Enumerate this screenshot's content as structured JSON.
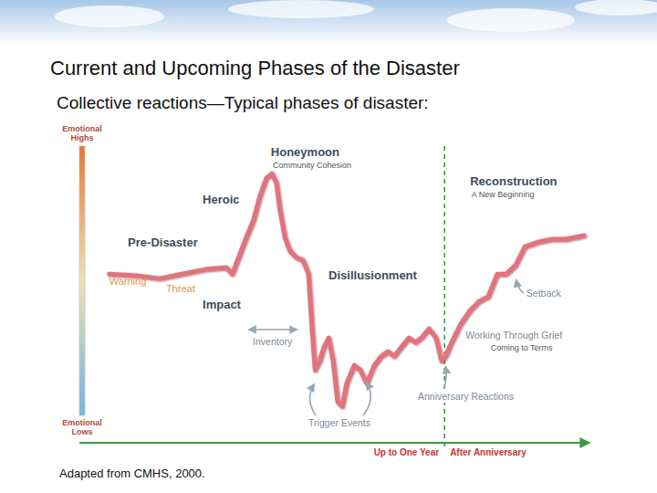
{
  "chart_data": {
    "type": "line",
    "title": "Current and Upcoming Phases of the Disaster",
    "subtitle": "Collective reactions—Typical phases of disaster:",
    "source": "Adapted from CMHS, 2000.",
    "y_label_high": "Emotional Highs",
    "y_label_low": "Emotional Lows",
    "xlim": [
      0,
      100
    ],
    "ylim": [
      0,
      100
    ],
    "tick_labels": false,
    "color": "#e2737b",
    "x": [
      4.5,
      10,
      14.5,
      19,
      23.6,
      27.8,
      29,
      30.4,
      31.8,
      33.3,
      34.5,
      35.8,
      36.9,
      37.8,
      38.5,
      39.5,
      40.5,
      41.8,
      43.1,
      44.2,
      44.9,
      45.5,
      46.4,
      47.3,
      48.2,
      49.1,
      50,
      50.9,
      51.8,
      53.3,
      54.5,
      55.8,
      57.3,
      58.7,
      60,
      61.3,
      62.7,
      64.2,
      65.5,
      66.7,
      68.2,
      69.6,
      70.7,
      71.5,
      72.7,
      74.5,
      76.4,
      78.2,
      80,
      81.8,
      83.6,
      85.5,
      87.3,
      90,
      92.7,
      95.5,
      99.1
    ],
    "values": [
      52.5,
      51.9,
      50.8,
      52.5,
      54.2,
      54.9,
      52.5,
      59.3,
      66.1,
      72.9,
      81.4,
      88.1,
      89.8,
      86.4,
      76.3,
      66.1,
      61,
      58.6,
      57.6,
      52.5,
      32.2,
      16.9,
      20.3,
      25.4,
      28.8,
      20.3,
      5.1,
      3.4,
      11.9,
      18.6,
      16.9,
      11.9,
      18.6,
      22,
      23.7,
      22,
      25.4,
      28.8,
      27.1,
      28.8,
      32.2,
      28.8,
      20.3,
      22,
      27.1,
      33.9,
      39,
      42.4,
      44.1,
      52.5,
      52.5,
      55.9,
      62.7,
      64.4,
      65.4,
      65.4,
      66.8
    ],
    "anniversary": {
      "x": 71.3,
      "before": "Up to One Year",
      "after": "After Anniversary"
    },
    "annotations": {
      "phases": [
        {
          "text": "Honeymoon",
          "x": 36.7,
          "y": 96.3
        },
        {
          "text": "Heroic",
          "x": 23.1,
          "y": 78.6
        },
        {
          "text": "Pre-Disaster",
          "x": 8.2,
          "y": 62.7
        },
        {
          "text": "Impact",
          "x": 23.1,
          "y": 39.7
        },
        {
          "text": "Disillusionment",
          "x": 48.2,
          "y": 50.5
        },
        {
          "text": "Reconstruction",
          "x": 76.4,
          "y": 85.4
        }
      ],
      "captions": [
        {
          "text": "Community Cohesion",
          "x": 37.1,
          "y": 91.9
        },
        {
          "text": "A New Beginning",
          "x": 76.7,
          "y": 81
        },
        {
          "text": "Coming to Terms",
          "x": 80.5,
          "y": 24.1
        }
      ],
      "early_signs": [
        {
          "text": "Warning",
          "x": 4.5,
          "y": 48.5
        },
        {
          "text": "Threat",
          "x": 15.8,
          "y": 45.8
        }
      ],
      "notes": [
        {
          "text": "Inventory",
          "x": 33.1,
          "y": 26.1
        },
        {
          "text": "Trigger Events",
          "x": 44.2,
          "y": -4.1
        },
        {
          "text": "Anniversary Reactions",
          "x": 66,
          "y": 5.8
        },
        {
          "text": "Setback",
          "x": 87.6,
          "y": 44.1
        },
        {
          "text": "Working Through Grief",
          "x": 75.5,
          "y": 28.5
        }
      ]
    }
  }
}
